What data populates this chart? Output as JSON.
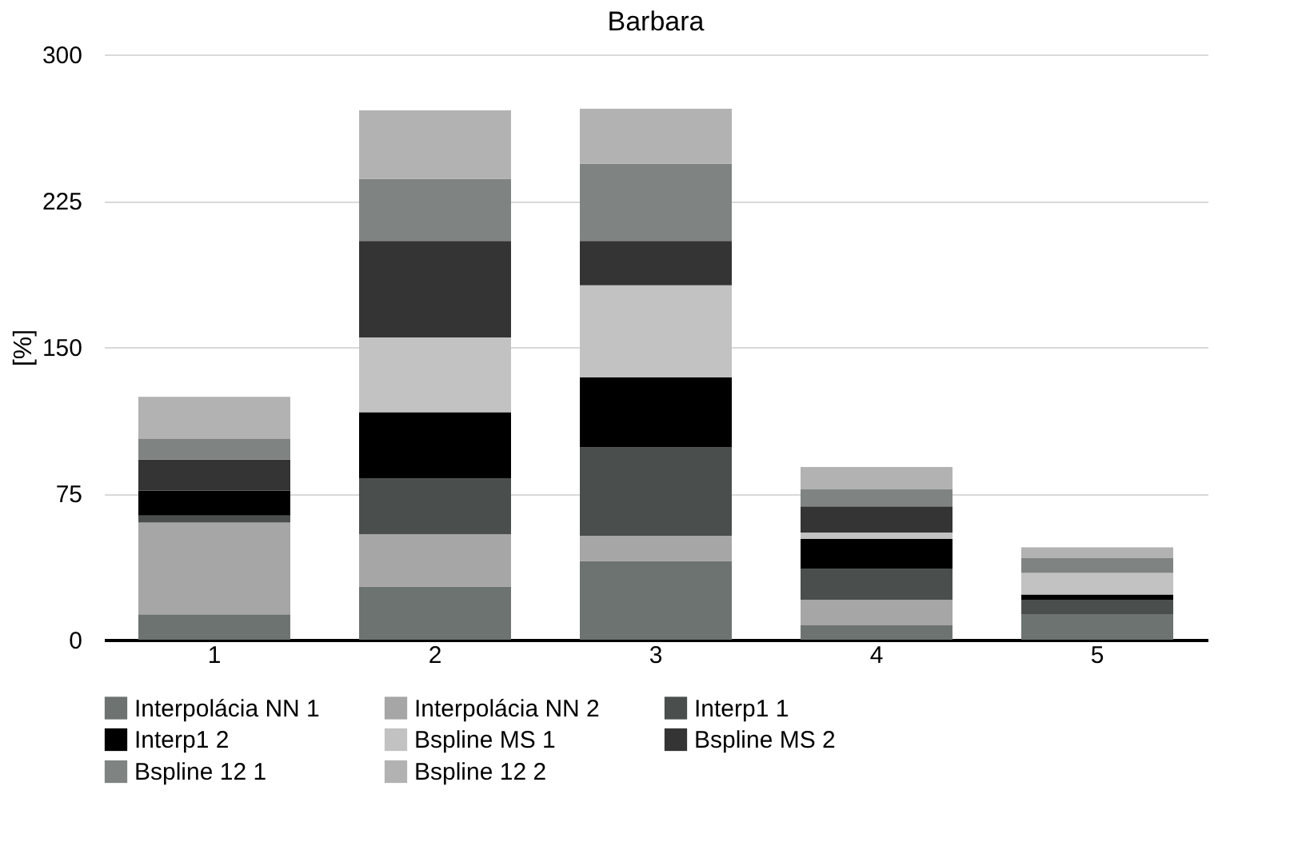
{
  "chart_data": {
    "type": "bar",
    "title": "Barbara",
    "ylabel": "[%]",
    "categories": [
      "1",
      "2",
      "3",
      "4",
      "5"
    ],
    "stacked": true,
    "ylim": [
      0,
      300
    ],
    "yticks": [
      0,
      75,
      150,
      225,
      300
    ],
    "grid": "y",
    "legend": "bottom",
    "series": [
      {
        "name": "Interpolácia NN 1",
        "color": "#6d7370",
        "values": [
          13,
          27.3,
          40.4,
          7.4,
          13.1
        ]
      },
      {
        "name": "Interpolácia NN 2",
        "color": "#a6a6a6",
        "values": [
          47,
          26.8,
          12.9,
          13.1,
          0
        ]
      },
      {
        "name": "Interp1 1",
        "color": "#4a4f4e",
        "values": [
          3.6,
          28.7,
          45.3,
          15.8,
          7.4
        ]
      },
      {
        "name": "Interp1 2",
        "color": "#000000",
        "values": [
          12.8,
          33.8,
          35.8,
          15.3,
          2.7
        ]
      },
      {
        "name": "Bspline MS  1",
        "color": "#c2c2c2",
        "values": [
          0,
          38.3,
          47.3,
          3.3,
          11
        ]
      },
      {
        "name": "Bspline MS  2",
        "color": "#343434",
        "values": [
          15.9,
          49.5,
          22.7,
          13.4,
          0
        ]
      },
      {
        "name": "Bspline 12 1",
        "color": "#7f8482",
        "values": [
          10.6,
          31.9,
          39.6,
          8.7,
          7.6
        ]
      },
      {
        "name": "Bspline 12  2",
        "color": "#b2b2b2",
        "values": [
          21.6,
          35,
          28.1,
          11.5,
          5.5
        ]
      }
    ]
  }
}
